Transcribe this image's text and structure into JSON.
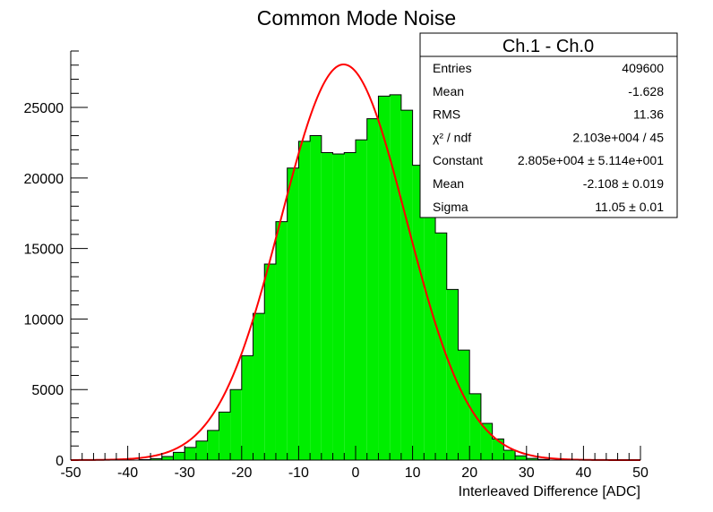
{
  "chart_data": {
    "type": "bar",
    "title": "Common Mode Noise",
    "xlabel": "Interleaved Difference [ADC]",
    "ylabel": "",
    "xlim": [
      -50,
      50
    ],
    "ylim": [
      0,
      29000
    ],
    "bin_width": 2,
    "x_ticks": [
      -50,
      -40,
      -30,
      -20,
      -10,
      0,
      10,
      20,
      30,
      40,
      50
    ],
    "y_ticks": [
      0,
      5000,
      10000,
      15000,
      20000,
      25000
    ],
    "x_tick_labels": [
      "-50",
      "-40",
      "-30",
      "-20",
      "-10",
      "0",
      "10",
      "20",
      "30",
      "40",
      "50"
    ],
    "y_tick_labels": [
      "0",
      "5000",
      "10000",
      "15000",
      "20000",
      "25000"
    ],
    "bin_edges_start": [
      -50,
      -48,
      -46,
      -44,
      -42,
      -40,
      -38,
      -36,
      -34,
      -32,
      -30,
      -28,
      -26,
      -24,
      -22,
      -20,
      -18,
      -16,
      -14,
      -12,
      -10,
      -8,
      -6,
      -4,
      -2,
      0,
      2,
      4,
      6,
      8,
      10,
      12,
      14,
      16,
      18,
      20,
      22,
      24,
      26,
      28,
      30,
      32,
      34,
      36,
      38,
      40,
      42,
      44,
      46,
      48
    ],
    "values": [
      0,
      0,
      0,
      0,
      0,
      0,
      30,
      100,
      250,
      550,
      900,
      1350,
      2100,
      3400,
      5000,
      7400,
      10400,
      13900,
      16900,
      20700,
      22600,
      23000,
      21800,
      21700,
      21800,
      22700,
      24200,
      25800,
      25900,
      24800,
      20900,
      19700,
      16100,
      12100,
      7800,
      4700,
      2600,
      1500,
      700,
      300,
      120,
      50,
      0,
      0,
      0,
      0,
      0,
      0,
      0,
      0
    ],
    "fit": {
      "name": "gaus",
      "constant": 28050,
      "mean": -2.108,
      "sigma": 11.05,
      "color": "#ff0000"
    },
    "bar_color": "#00ee00",
    "outline_color": "#000000",
    "grid": false,
    "legend_position": "top-right",
    "stats_box": {
      "title": "Ch.1 - Ch.0",
      "rows": [
        {
          "label": "Entries",
          "value": "409600"
        },
        {
          "label": "Mean",
          "value": "-1.628"
        },
        {
          "label": "RMS",
          "value": "11.36"
        },
        {
          "label": "χ² / ndf",
          "value": "2.103e+004 / 45"
        },
        {
          "label": "Constant",
          "value": "2.805e+004 ± 5.114e+001"
        },
        {
          "label": "Mean",
          "value": "-2.108 ± 0.019"
        },
        {
          "label": "Sigma",
          "value": "11.05 ± 0.01"
        }
      ]
    }
  }
}
